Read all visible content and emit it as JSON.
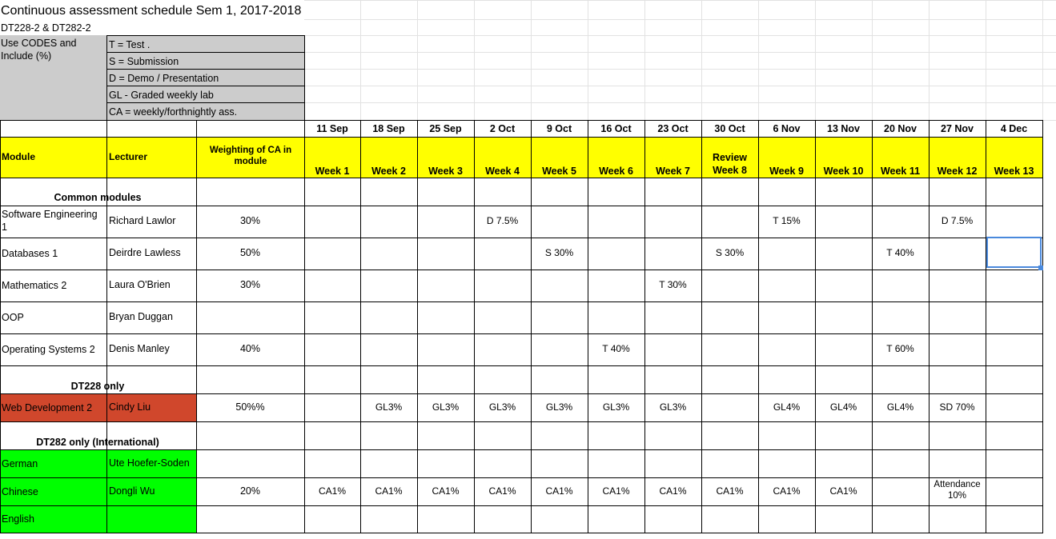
{
  "sheet": {
    "title": "Continuous assessment schedule  Sem 1, 2017-2018",
    "subtitle": "DT228-2 & DT282-2",
    "codes_label": "Use CODES  and Include (%)",
    "codes": [
      "T = Test .",
      "S = Submission",
      "D = Demo / Presentation",
      "GL - Graded weekly lab",
      "CA = weekly/forthnightly ass."
    ],
    "headers": {
      "module": "Module",
      "lecturer": "Lecturer",
      "weighting": "Weighting of CA in module",
      "dates": [
        "11 Sep",
        "18 Sep",
        "25 Sep",
        "2 Oct",
        "9 Oct",
        "16 Oct",
        "23 Oct",
        "30 Oct",
        "6 Nov",
        "13 Nov",
        "20 Nov",
        "27 Nov",
        "4 Dec"
      ],
      "weeks": [
        "Week 1",
        "Week 2",
        "Week 3",
        "Week 4",
        "Week 5",
        "Week 6",
        "Week 7",
        "Review Week 8",
        "Week 9",
        "Week 10",
        "Week 11",
        "Week 12",
        "Week 13"
      ]
    },
    "sections": {
      "common": "Common modules",
      "dt228": "DT228 only",
      "dt282": "DT282 only (International)"
    },
    "rows": [
      {
        "module": "Software Engineering 1",
        "lecturer": "Richard Lawlor",
        "weighting": "30%",
        "weeks": [
          "",
          "",
          "",
          "D 7.5%",
          "",
          "",
          "",
          "",
          "T 15%",
          "",
          "",
          "D 7.5%",
          ""
        ]
      },
      {
        "module": "Databases 1",
        "lecturer": "Deirdre Lawless",
        "weighting": "50%",
        "weeks": [
          "",
          "",
          "",
          "",
          "S 30%",
          "",
          "",
          "S 30%",
          "",
          "",
          "T 40%",
          "",
          ""
        ]
      },
      {
        "module": "Mathematics 2",
        "lecturer": "Laura O'Brien",
        "weighting": "30%",
        "weeks": [
          "",
          "",
          "",
          "",
          "",
          "",
          "T 30%",
          "",
          "",
          "",
          "",
          "",
          ""
        ]
      },
      {
        "module": "OOP",
        "lecturer": "Bryan Duggan",
        "weighting": "",
        "weeks": [
          "",
          "",
          "",
          "",
          "",
          "",
          "",
          "",
          "",
          "",
          "",
          "",
          ""
        ]
      },
      {
        "module": "Operating Systems 2",
        "lecturer": "Denis Manley",
        "weighting": "40%",
        "weeks": [
          "",
          "",
          "",
          "",
          "",
          "T 40%",
          "",
          "",
          "",
          "",
          "T 60%",
          "",
          ""
        ]
      },
      {
        "module": "Web Development 2",
        "lecturer": "Cindy Liu",
        "weighting": "50%%",
        "weeks": [
          "",
          "GL3%",
          "GL3%",
          "GL3%",
          "GL3%",
          "GL3%",
          "GL3%",
          "",
          "GL4%",
          "GL4%",
          "GL4%",
          "SD 70%",
          ""
        ]
      },
      {
        "module": "German",
        "lecturer": "Ute Hoefer-Soden",
        "weighting": "",
        "weeks": [
          "",
          "",
          "",
          "",
          "",
          "",
          "",
          "",
          "",
          "",
          "",
          "",
          ""
        ]
      },
      {
        "module": "Chinese",
        "lecturer": "Dongli Wu",
        "weighting": "20%",
        "weeks": [
          "CA1%",
          "CA1%",
          "CA1%",
          "CA1%",
          "CA1%",
          "CA1%",
          "CA1%",
          "CA1%",
          "CA1%",
          "CA1%",
          "",
          "Attendance 10%",
          ""
        ]
      },
      {
        "module": "English",
        "lecturer": "",
        "weighting": "",
        "weeks": [
          "",
          "",
          "",
          "",
          "",
          "",
          "",
          "",
          "",
          "",
          "",
          "",
          ""
        ]
      }
    ],
    "colors": {
      "header_yellow": "#ffff00",
      "codes_grey": "#cccccc",
      "web_dev_red": "#d0472c",
      "international_green": "#00ff00",
      "selection_blue": "#4a89dc"
    }
  }
}
